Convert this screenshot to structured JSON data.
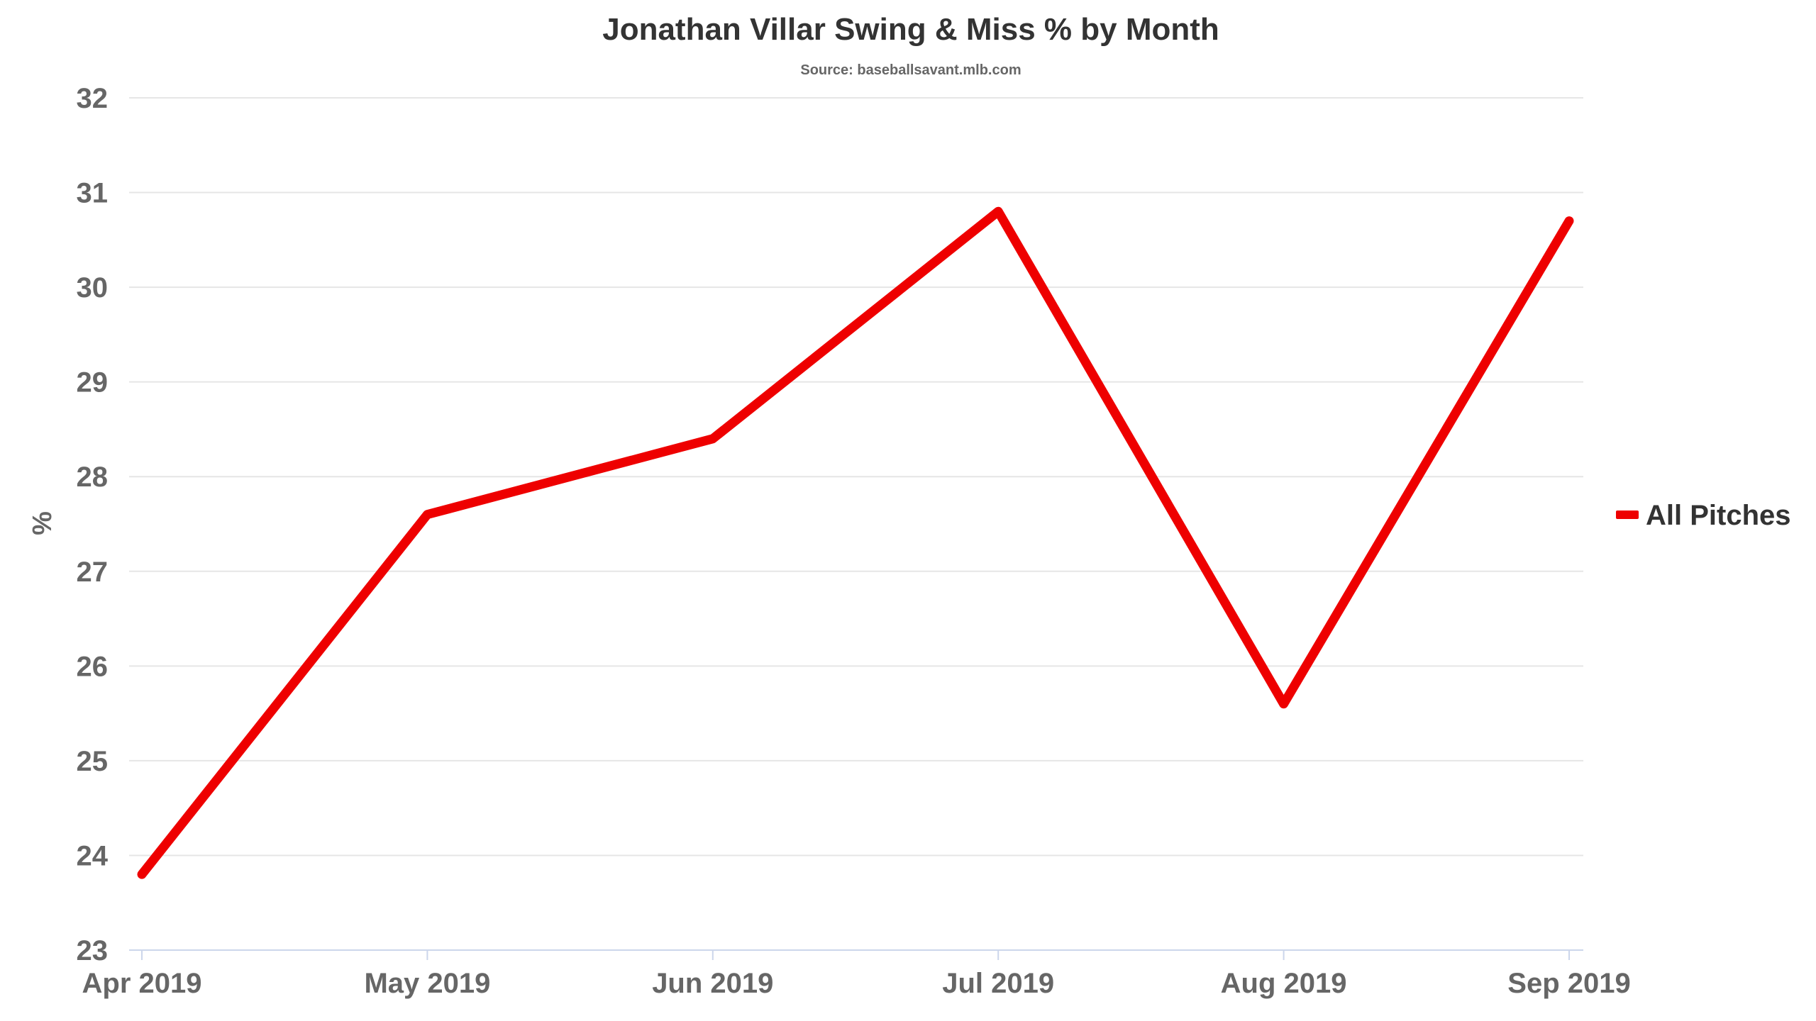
{
  "chart_data": {
    "type": "line",
    "title": "Jonathan Villar Swing & Miss % by Month",
    "subtitle": "Source: baseballsavant.mlb.com",
    "xlabel": "",
    "ylabel": "%",
    "categories": [
      "Apr 2019",
      "May 2019",
      "Jun 2019",
      "Jul 2019",
      "Aug 2019",
      "Sep 2019"
    ],
    "series": [
      {
        "name": "All Pitches",
        "values": [
          23.8,
          27.6,
          28.4,
          30.8,
          25.6,
          30.7
        ],
        "color": "#ee0000"
      }
    ],
    "ylim": [
      23,
      32
    ],
    "yticks": [
      "23",
      "24",
      "25",
      "26",
      "27",
      "28",
      "29",
      "30",
      "31",
      "32"
    ],
    "grid": true,
    "legend_position": "right"
  }
}
